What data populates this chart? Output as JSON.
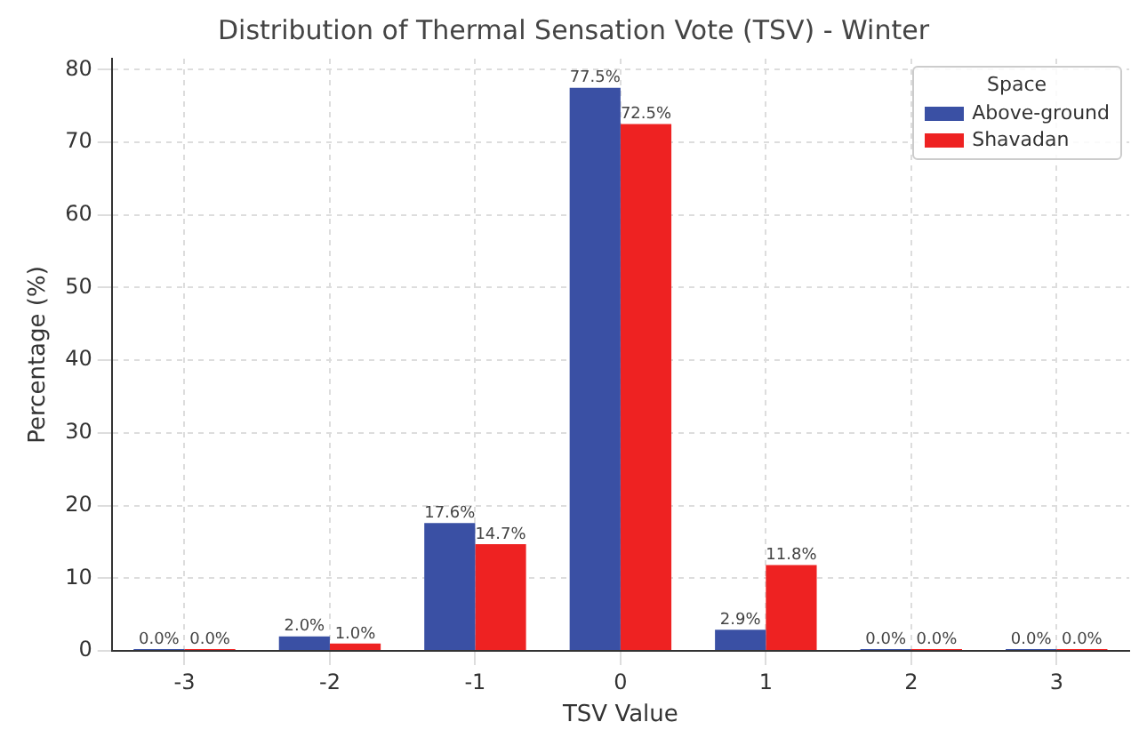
{
  "chart_data": {
    "type": "bar",
    "title": "Distribution of Thermal Sensation Vote (TSV) - Winter",
    "xlabel": "TSV Value",
    "ylabel": "Percentage (%)",
    "legend_title": "Space",
    "categories": [
      "-3",
      "-2",
      "-1",
      "0",
      "1",
      "2",
      "3"
    ],
    "series": [
      {
        "name": "Above-ground",
        "color": "#3a50a4",
        "values": [
          0.0,
          2.0,
          17.6,
          77.5,
          2.9,
          0.0,
          0.0
        ],
        "value_labels": [
          "0.0%",
          "2.0%",
          "17.6%",
          "77.5%",
          "2.9%",
          "0.0%",
          "0.0%"
        ]
      },
      {
        "name": "Shavadan",
        "color": "#ee2222",
        "values": [
          0.0,
          1.0,
          14.7,
          72.5,
          11.8,
          0.0,
          0.0
        ],
        "value_labels": [
          "0.0%",
          "1.0%",
          "14.7%",
          "72.5%",
          "11.8%",
          "0.0%",
          "0.0%"
        ]
      }
    ],
    "ylim": [
      0,
      81.5
    ],
    "yticks": [
      0,
      10,
      20,
      30,
      40,
      50,
      60,
      70,
      80
    ],
    "grid": true,
    "legend": "top right"
  }
}
